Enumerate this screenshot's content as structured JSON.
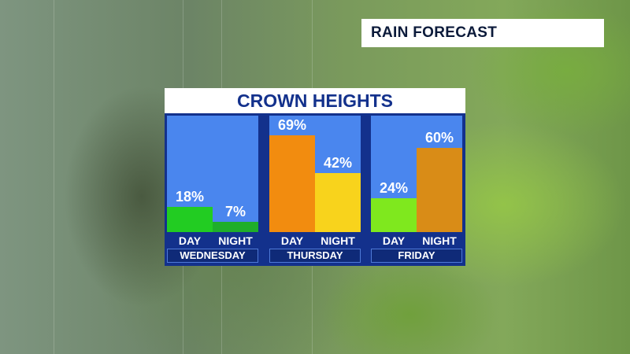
{
  "header": {
    "title": "RAIN FORECAST"
  },
  "location": "CROWN HEIGHTS",
  "chart_data": {
    "type": "bar",
    "title": "CROWN HEIGHTS",
    "unit": "%",
    "ylim": [
      0,
      100
    ],
    "days": [
      {
        "name": "WEDNESDAY",
        "periods": [
          {
            "label": "DAY",
            "value": 18,
            "display": "18%",
            "color": "#22cc22"
          },
          {
            "label": "NIGHT",
            "value": 7,
            "display": "7%",
            "color": "#1fae2a"
          }
        ]
      },
      {
        "name": "THURSDAY",
        "periods": [
          {
            "label": "DAY",
            "value": 69,
            "display": "69%",
            "color": "#f28c0f"
          },
          {
            "label": "NIGHT",
            "value": 42,
            "display": "42%",
            "color": "#f8d31c"
          }
        ]
      },
      {
        "name": "FRIDAY",
        "periods": [
          {
            "label": "DAY",
            "value": 24,
            "display": "24%",
            "color": "#7fe81e"
          },
          {
            "label": "NIGHT",
            "value": 60,
            "display": "60%",
            "color": "#d98c17"
          }
        ]
      }
    ]
  }
}
